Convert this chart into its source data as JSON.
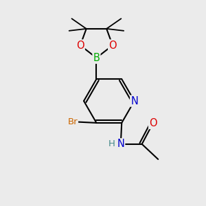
{
  "background_color": "#ebebeb",
  "atom_colors": {
    "C": "#000000",
    "N": "#0000cc",
    "O": "#dd0000",
    "B": "#00aa00",
    "Br": "#cc6600",
    "H": "#448888"
  },
  "bond_color": "#000000",
  "bond_width": 1.5,
  "font_size": 9.5
}
